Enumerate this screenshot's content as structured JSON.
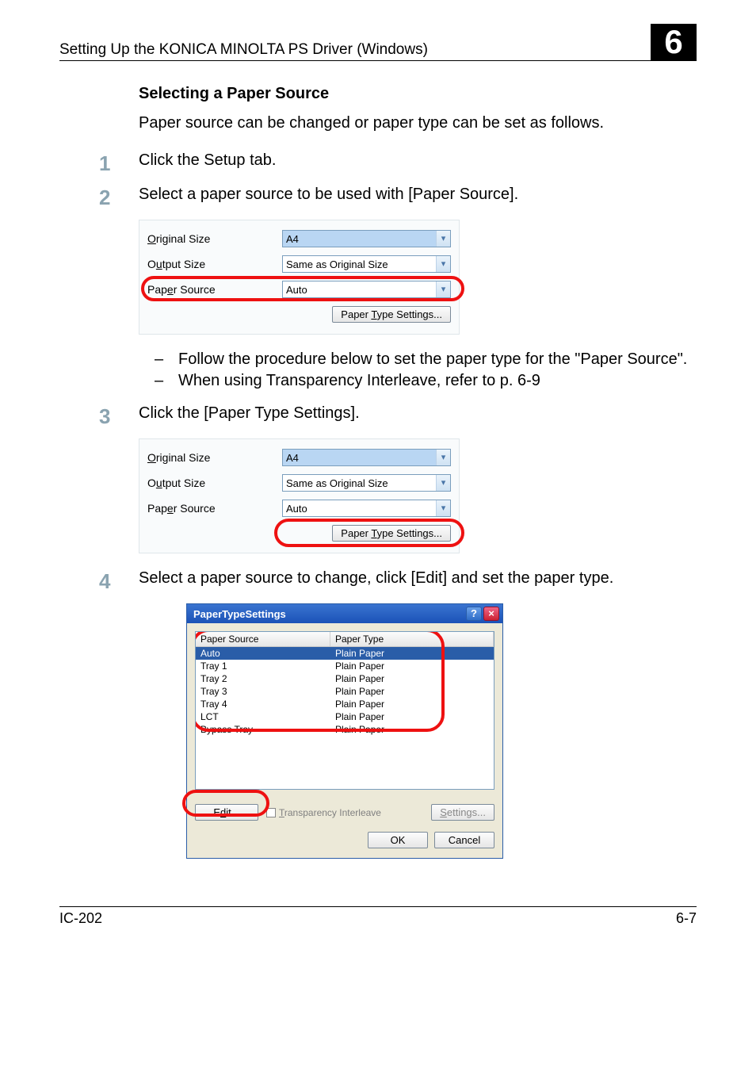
{
  "header": {
    "title": "Setting Up the KONICA MINOLTA PS Driver (Windows)",
    "chapter": "6"
  },
  "section_title": "Selecting a Paper Source",
  "intro": "Paper source can be changed or paper type can be set as follows.",
  "steps": {
    "s1": {
      "num": "1",
      "text": "Click the Setup tab."
    },
    "s2": {
      "num": "2",
      "text": "Select a paper source to be used with [Paper Source]."
    },
    "s3": {
      "num": "3",
      "text": "Click the [Paper Type Settings]."
    },
    "s4": {
      "num": "4",
      "text": "Select a paper source to change, click [Edit] and set the paper type."
    }
  },
  "bullets": {
    "b1": "Follow the procedure below to set the paper type for the \"Paper Source\".",
    "b2": "When using Transparency Interleave, refer to p. 6-9"
  },
  "panel": {
    "original_size_label": "Original Size",
    "output_size_label": "Output Size",
    "paper_source_label": "Paper Source",
    "original_size_value": "A4",
    "output_size_value": "Same as Original Size",
    "paper_source_value": "Auto",
    "paper_type_button": "Paper Type Settings..."
  },
  "dialog": {
    "title": "PaperTypeSettings",
    "col1": "Paper Source",
    "col2": "Paper Type",
    "rows": [
      {
        "source": "Auto",
        "type": "Plain Paper",
        "selected": true
      },
      {
        "source": "Tray 1",
        "type": "Plain Paper",
        "selected": false
      },
      {
        "source": "Tray 2",
        "type": "Plain Paper",
        "selected": false
      },
      {
        "source": "Tray 3",
        "type": "Plain Paper",
        "selected": false
      },
      {
        "source": "Tray 4",
        "type": "Plain Paper",
        "selected": false
      },
      {
        "source": "LCT",
        "type": "Plain Paper",
        "selected": false
      },
      {
        "source": "Bypass Tray",
        "type": "Plain Paper",
        "selected": false
      }
    ],
    "edit": "Edit...",
    "transparency": "Transparency Interleave",
    "settings": "Settings...",
    "ok": "OK",
    "cancel": "Cancel"
  },
  "footer": {
    "left": "IC-202",
    "right": "6-7"
  },
  "colors": {
    "step_num": "#8aa3b0",
    "ring": "#e11",
    "titlebar_top": "#3a74d0",
    "titlebar_bottom": "#1b52b7",
    "selected_row": "#2a5da8",
    "dialog_bg": "#ece9d8"
  }
}
